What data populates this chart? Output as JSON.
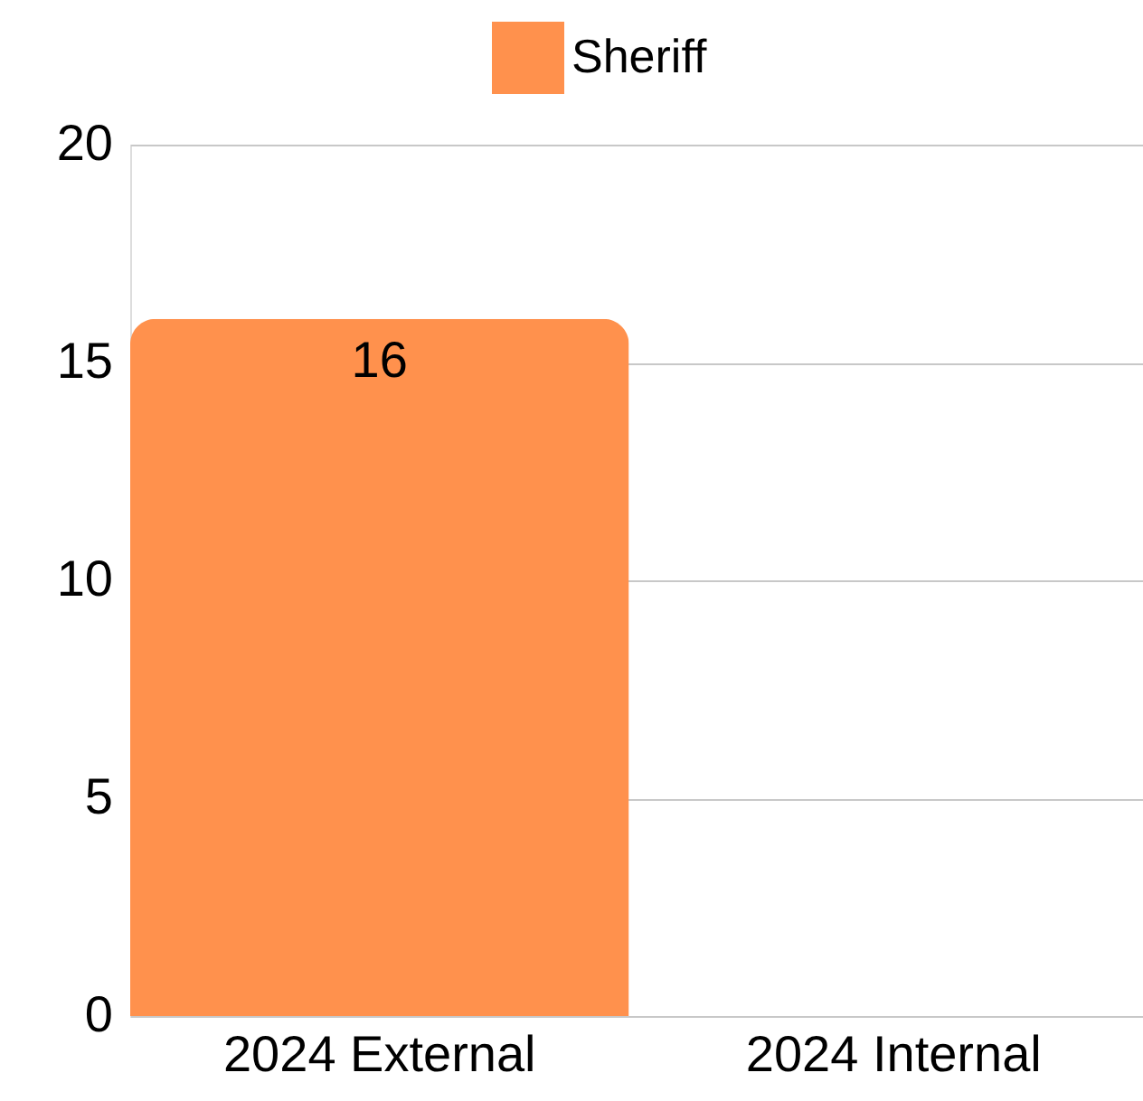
{
  "chart_data": {
    "type": "bar",
    "categories": [
      "2024 External",
      "2024 Internal"
    ],
    "series": [
      {
        "name": "Sheriff",
        "color": "#ff914d",
        "values": [
          16,
          0
        ]
      }
    ],
    "value_labels": [
      "16",
      null
    ],
    "ylim": [
      0,
      20
    ],
    "yticks": [
      0,
      5,
      10,
      15,
      20
    ],
    "grid": "y",
    "legend": "top"
  }
}
